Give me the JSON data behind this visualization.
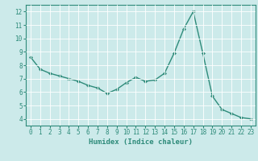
{
  "x": [
    0,
    1,
    2,
    3,
    4,
    5,
    6,
    7,
    8,
    9,
    10,
    11,
    12,
    13,
    14,
    15,
    16,
    17,
    18,
    19,
    20,
    21,
    22,
    23
  ],
  "y": [
    8.6,
    7.7,
    7.4,
    7.2,
    7.0,
    6.8,
    6.5,
    6.3,
    5.9,
    6.2,
    6.7,
    7.1,
    6.8,
    6.9,
    7.4,
    8.9,
    10.7,
    12.0,
    8.9,
    5.7,
    4.7,
    4.4,
    4.1,
    4.0
  ],
  "line_color": "#2e8b7a",
  "marker": "D",
  "marker_size": 2.0,
  "xlabel": "Humidex (Indice chaleur)",
  "ylim": [
    3.5,
    12.5
  ],
  "xlim": [
    -0.5,
    23.5
  ],
  "yticks": [
    4,
    5,
    6,
    7,
    8,
    9,
    10,
    11,
    12
  ],
  "xticks": [
    0,
    1,
    2,
    3,
    4,
    5,
    6,
    7,
    8,
    9,
    10,
    11,
    12,
    13,
    14,
    15,
    16,
    17,
    18,
    19,
    20,
    21,
    22,
    23
  ],
  "background_color": "#cceaea",
  "grid_color": "#ffffff",
  "tick_label_fontsize": 5.5,
  "xlabel_fontsize": 6.5,
  "line_width": 1.0
}
